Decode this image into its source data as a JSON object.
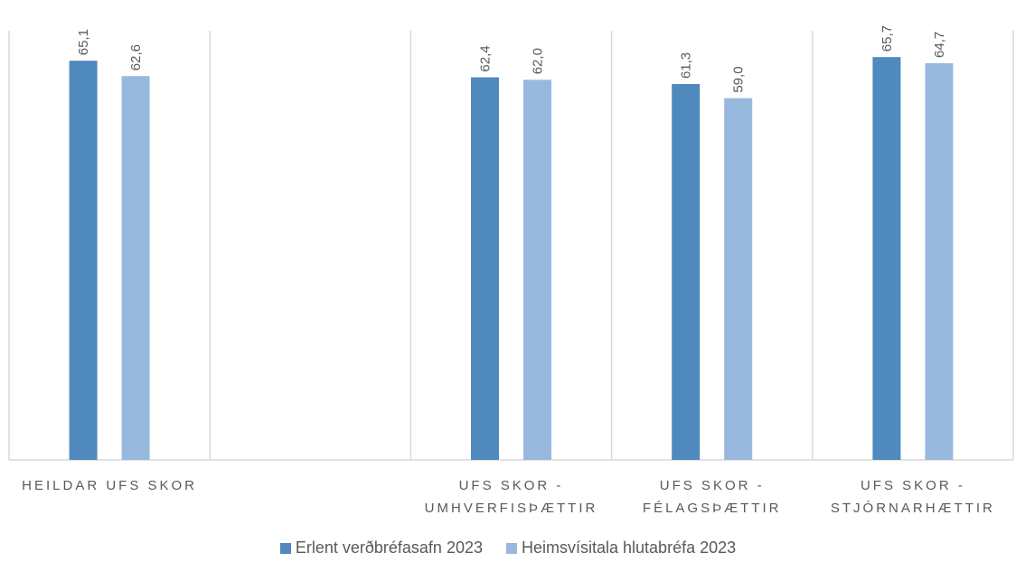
{
  "chart_data": {
    "type": "bar",
    "title": "",
    "xlabel": "",
    "ylabel": "",
    "ylim": [
      0,
      70
    ],
    "grid": false,
    "legend_position": "bottom",
    "categories": [
      [
        "HEILDAR UFS SKOR"
      ],
      [],
      [
        "UFS SKOR -",
        "UMHVERFISÞÆTTIR"
      ],
      [
        "UFS SKOR -",
        "FÉLAGSÞÆTTIR"
      ],
      [
        "UFS SKOR -",
        "STJÓRNARHÆTTIR"
      ]
    ],
    "series": [
      {
        "name": "Erlent verðbréfasafn 2023",
        "color": "#4f89bd",
        "values": [
          65.1,
          null,
          62.4,
          61.3,
          65.7
        ],
        "labels": [
          "65,1",
          "",
          "62,4",
          "61,3",
          "65,7"
        ]
      },
      {
        "name": "Heimsvísitala hlutabréfa 2023",
        "color": "#98b9de",
        "values": [
          62.6,
          null,
          62.0,
          59.0,
          64.7
        ],
        "labels": [
          "62,6",
          "",
          "62,0",
          "59,0",
          "64,7"
        ]
      }
    ]
  },
  "legend": {
    "items": [
      {
        "label": "Erlent verðbréfasafn 2023",
        "color": "#4f89bd"
      },
      {
        "label": "Heimsvísitala hlutabréfa 2023",
        "color": "#98b9de"
      }
    ]
  }
}
